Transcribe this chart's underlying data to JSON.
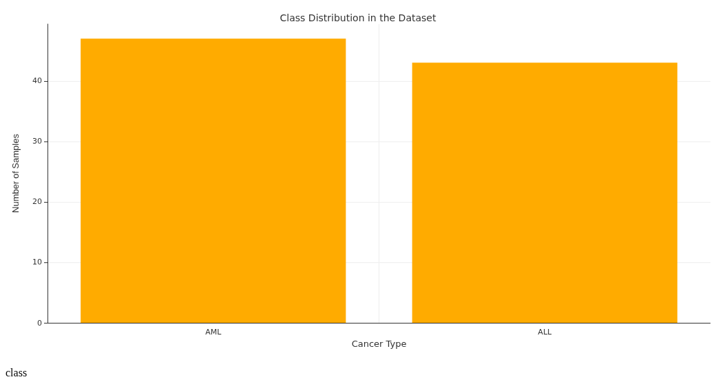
{
  "chart_data": {
    "type": "bar",
    "title": "Class Distribution in the Dataset",
    "xlabel": "Cancer Type",
    "ylabel": "Number of Samples",
    "categories": [
      "AML",
      "ALL"
    ],
    "values": [
      47,
      43
    ],
    "color": "#ffab00",
    "ylim": [
      0,
      49.4
    ],
    "yticks": [
      0,
      10,
      20,
      30,
      40
    ],
    "grid": true,
    "annotations": [
      "class"
    ]
  }
}
